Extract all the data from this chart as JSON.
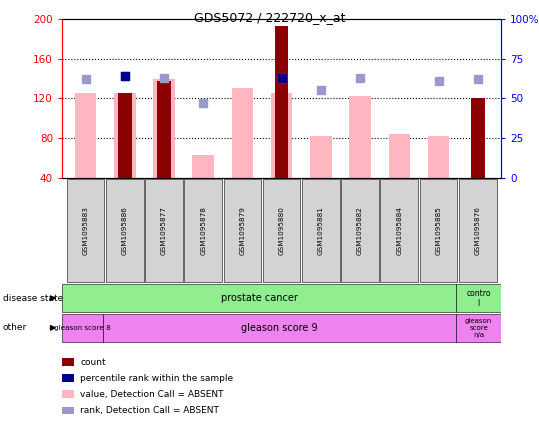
{
  "title": "GDS5072 / 222720_x_at",
  "samples": [
    "GSM1095883",
    "GSM1095886",
    "GSM1095877",
    "GSM1095878",
    "GSM1095879",
    "GSM1095880",
    "GSM1095881",
    "GSM1095882",
    "GSM1095884",
    "GSM1095885",
    "GSM1095876"
  ],
  "count_values": [
    null,
    125,
    137,
    null,
    null,
    193,
    null,
    null,
    null,
    null,
    120
  ],
  "pink_values": [
    125,
    125,
    140,
    63,
    130,
    125,
    82,
    122,
    84,
    82,
    null
  ],
  "blue_dot_values": [
    62,
    64,
    63,
    47,
    null,
    63,
    55,
    63,
    null,
    61,
    62
  ],
  "dark_blue_indices": [
    1,
    5
  ],
  "dark_blue_values": [
    64,
    63
  ],
  "ylim": [
    40,
    200
  ],
  "y2lim": [
    0,
    100
  ],
  "yticks": [
    40,
    80,
    120,
    160,
    200
  ],
  "y2ticks": [
    0,
    25,
    50,
    75,
    100
  ],
  "ytick_labels": [
    "40",
    "80",
    "120",
    "160",
    "200"
  ],
  "y2tick_labels": [
    "0",
    "25",
    "50",
    "75",
    "100%"
  ],
  "disease_color": "#90EE90",
  "other_color": "#EE82EE",
  "count_color": "#8B0000",
  "pink_color": "#FFB6C1",
  "blue_dot_color": "#9999CC",
  "blue_marker_color": "#00008B",
  "bar_width": 0.35,
  "pink_bar_width": 0.55,
  "dot_size": 30,
  "grid_yticks": [
    80,
    120,
    160
  ]
}
